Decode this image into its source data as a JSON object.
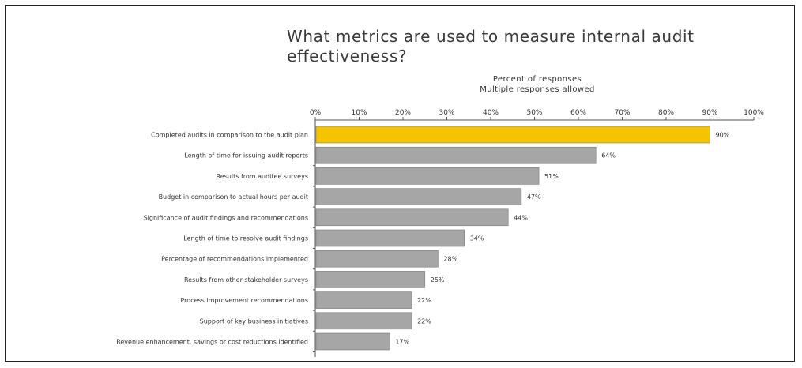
{
  "chart_data": {
    "type": "bar",
    "orientation": "horizontal",
    "title": "What metrics are used to measure internal audit effectiveness?",
    "xlabel": "Percent of responses",
    "xlabel_note": "Multiple responses allowed",
    "xlim": [
      0,
      100
    ],
    "ticks": [
      "0%",
      "10%",
      "20%",
      "30%",
      "40%",
      "50%",
      "60%",
      "70%",
      "80%",
      "90%",
      "100%"
    ],
    "categories": [
      "Completed audits in comparison to the audit plan",
      "Length of time for issuing audit reports",
      "Results from auditee surveys",
      "Budget in comparison to actual hours per audit",
      "Significance of audit findings and recommendations",
      "Length of time to resolve audit findings",
      "Percentage of recommendations implemented",
      "Results from other stakeholder surveys",
      "Process improvement recommendations",
      "Support of key business initiatives",
      "Revenue enhancement, savings or cost reductions identified"
    ],
    "values": [
      90,
      64,
      51,
      47,
      44,
      34,
      28,
      25,
      22,
      22,
      17
    ],
    "value_labels": [
      "90%",
      "64%",
      "51%",
      "47%",
      "44%",
      "34%",
      "28%",
      "25%",
      "22%",
      "22%",
      "17%"
    ],
    "highlight_color": "#f5c400",
    "bar_color": "#a6a6a6",
    "grid": false,
    "legend": "none"
  }
}
